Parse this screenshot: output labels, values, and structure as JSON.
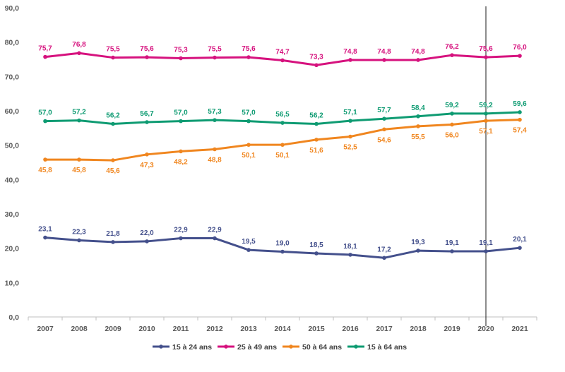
{
  "chart_data": {
    "type": "line",
    "categories": [
      "2007",
      "2008",
      "2009",
      "2010",
      "2011",
      "2012",
      "2013",
      "2014",
      "2015",
      "2016",
      "2017",
      "2018",
      "2019",
      "2020",
      "2021"
    ],
    "ylim": [
      0,
      90
    ],
    "yticks": [
      0,
      10,
      20,
      30,
      40,
      50,
      60,
      70,
      80,
      90
    ],
    "ytick_labels": [
      "0,0",
      "10,0",
      "20,0",
      "30,0",
      "40,0",
      "50,0",
      "60,0",
      "70,0",
      "80,0",
      "90,0"
    ],
    "grid": false,
    "legend_position": "bottom",
    "vertical_marker_category": "2020",
    "series": [
      {
        "name": "15 à 24 ans",
        "color": "#44508c",
        "label_position": "above",
        "values": [
          23.1,
          22.3,
          21.8,
          22.0,
          22.9,
          22.9,
          19.5,
          19.0,
          18.5,
          18.1,
          17.2,
          19.3,
          19.1,
          19.1,
          20.1
        ],
        "labels": [
          "23,1",
          "22,3",
          "21,8",
          "22,0",
          "22,9",
          "22,9",
          "19,5",
          "19,0",
          "18,5",
          "18,1",
          "17,2",
          "19,3",
          "19,1",
          "19,1",
          "20,1"
        ]
      },
      {
        "name": "25 à 49 ans",
        "color": "#d6127e",
        "label_position": "above",
        "values": [
          75.7,
          76.8,
          75.5,
          75.6,
          75.3,
          75.5,
          75.6,
          74.7,
          73.3,
          74.8,
          74.8,
          74.8,
          76.2,
          75.6,
          76.0
        ],
        "labels": [
          "75,7",
          "76,8",
          "75,5",
          "75,6",
          "75,3",
          "75,5",
          "75,6",
          "74,7",
          "73,3",
          "74,8",
          "74,8",
          "74,8",
          "76,2",
          "75,6",
          "76,0"
        ]
      },
      {
        "name": "50 à 64 ans",
        "color": "#f0861f",
        "label_position": "below",
        "values": [
          45.8,
          45.8,
          45.6,
          47.3,
          48.2,
          48.8,
          50.1,
          50.1,
          51.6,
          52.5,
          54.6,
          55.5,
          56.0,
          57.1,
          57.4
        ],
        "labels": [
          "45,8",
          "45,8",
          "45,6",
          "47,3",
          "48,2",
          "48,8",
          "50,1",
          "50,1",
          "51,6",
          "52,5",
          "54,6",
          "55,5",
          "56,0",
          "57,1",
          "57,4"
        ]
      },
      {
        "name": "15 à 64 ans",
        "color": "#0e9b72",
        "label_position": "above",
        "values": [
          57.0,
          57.2,
          56.2,
          56.7,
          57.0,
          57.3,
          57.0,
          56.5,
          56.2,
          57.1,
          57.7,
          58.4,
          59.2,
          59.2,
          59.6
        ],
        "labels": [
          "57,0",
          "57,2",
          "56,2",
          "56,7",
          "57,0",
          "57,3",
          "57,0",
          "56,5",
          "56,2",
          "57,1",
          "57,7",
          "58,4",
          "59,2",
          "59,2",
          "59,6"
        ]
      }
    ]
  }
}
